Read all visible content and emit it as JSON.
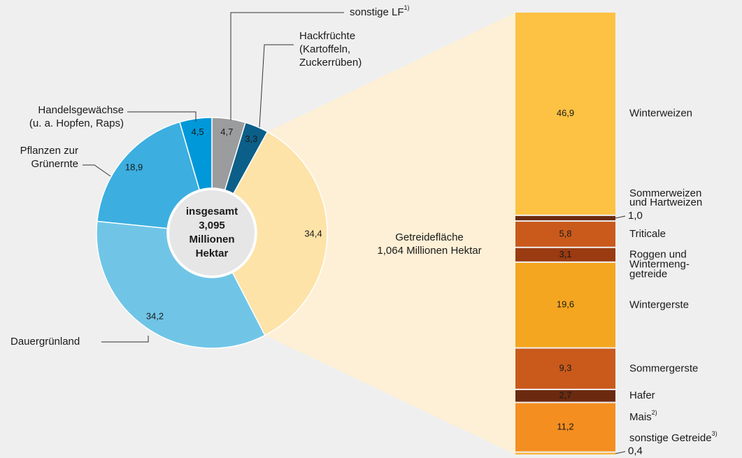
{
  "chart_data": [
    {
      "type": "pie",
      "categories": [
        [
          "sonstige LF"
        ],
        [
          "Hackfrüchte",
          "(Kartoffeln,",
          "Zuckerrüben)"
        ],
        [
          "Getreidefläche",
          "1,064 Millionen Hektar"
        ],
        [
          "Dauergrünland"
        ],
        [
          "Pflanzen zur",
          "Grünernte"
        ],
        [
          "Handelsgewächse",
          "(u. a. Hopfen, Raps)"
        ]
      ],
      "notes": [
        "1)",
        null,
        null,
        null,
        null,
        null
      ],
      "values": [
        4.7,
        3.3,
        34.4,
        34.2,
        18.9,
        4.5
      ],
      "value_labels": [
        "4,7",
        "3,3",
        "34,4",
        "34,2",
        "18,9",
        "4,5"
      ],
      "colors": [
        "#9b9c9e",
        "#0b5f88",
        "#fde3a8",
        "#70c5e7",
        "#3caee0",
        "#0098d8"
      ],
      "center_label": [
        "insgesamt",
        "3,095",
        "Millionen",
        "Hektar"
      ]
    },
    {
      "type": "bar",
      "categories": [
        [
          "Winterweizen"
        ],
        [
          "Sommerweizen",
          "und Hartweizen"
        ],
        [
          "Triticale"
        ],
        [
          "Roggen und",
          "Wintermeng-",
          "getreide"
        ],
        [
          "Wintergerste"
        ],
        [
          "Sommergerste"
        ],
        [
          "Hafer"
        ],
        [
          "Mais"
        ],
        [
          "sonstige Getreide"
        ]
      ],
      "notes": [
        null,
        null,
        null,
        null,
        null,
        null,
        null,
        "2)",
        "3)"
      ],
      "values": [
        46.9,
        1.0,
        5.8,
        3.1,
        19.6,
        9.3,
        2.7,
        11.2,
        0.4
      ],
      "value_labels": [
        "46,9",
        "1,0",
        "5,8",
        "3,1",
        "19,6",
        "9,3",
        "2,7",
        "11,2",
        "0,4"
      ],
      "colors": [
        "#fdc243",
        "#6b2a10",
        "#c95a1c",
        "#9a3b12",
        "#f5a620",
        "#c95a1c",
        "#6b2a10",
        "#f48e20",
        "#f9b43c"
      ]
    }
  ]
}
